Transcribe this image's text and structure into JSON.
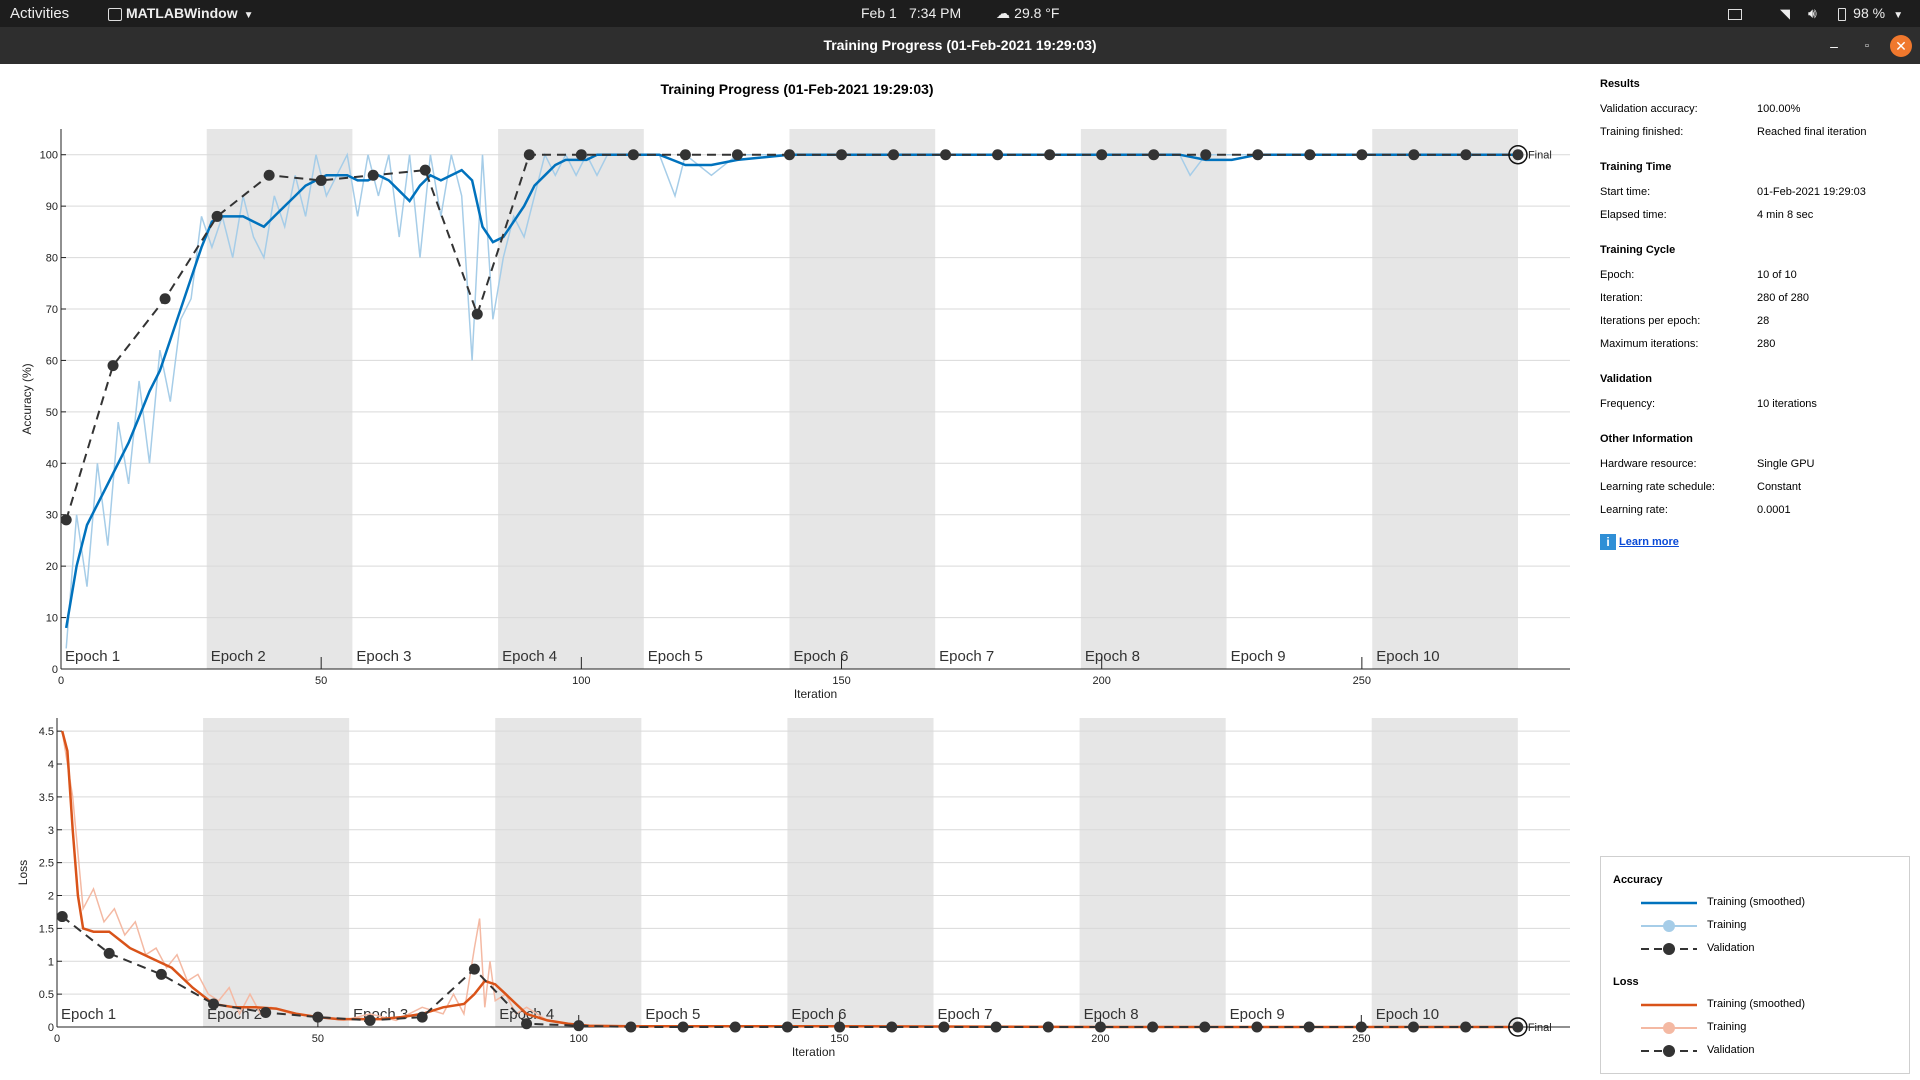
{
  "topbar": {
    "activities": "Activities",
    "app_menu": "MATLABWindow",
    "date": "Feb 1",
    "time": "7:34 PM",
    "weather": "29.8 °F",
    "battery": "98 %"
  },
  "window": {
    "title": "Training Progress (01-Feb-2021 19:29:03)"
  },
  "figure_title": "Training Progress (01-Feb-2021 19:29:03)",
  "colors": {
    "accuracy_smoothed": "#0072bd",
    "accuracy_raw": "#a6cde8",
    "loss_smoothed": "#d95319",
    "loss_raw": "#f4b9a3",
    "validation": "#333333",
    "epoch_shade": "#e6e6e6"
  },
  "chart_data": [
    {
      "type": "line",
      "title": "",
      "xlabel": "Iteration",
      "ylabel": "Accuracy (%)",
      "xlim": [
        0,
        290
      ],
      "ylim": [
        0,
        105
      ],
      "xticks": [
        0,
        50,
        100,
        150,
        200,
        250
      ],
      "yticks": [
        0,
        10,
        20,
        30,
        40,
        50,
        60,
        70,
        80,
        90,
        100
      ],
      "epochs": [
        "Epoch 1",
        "Epoch 2",
        "Epoch 3",
        "Epoch 4",
        "Epoch 5",
        "Epoch 6",
        "Epoch 7",
        "Epoch 8",
        "Epoch 9",
        "Epoch 10"
      ],
      "iterations_per_epoch": 28,
      "final_label": "Final",
      "series": [
        {
          "name": "Training (smoothed)",
          "x": [
            1,
            3,
            5,
            7,
            9,
            11,
            13,
            15,
            17,
            19,
            21,
            23,
            25,
            27,
            29,
            31,
            33,
            35,
            37,
            39,
            41,
            43,
            45,
            47,
            49,
            51,
            53,
            55,
            57,
            59,
            61,
            63,
            65,
            67,
            69,
            71,
            73,
            75,
            77,
            79,
            81,
            83,
            85,
            87,
            89,
            91,
            93,
            95,
            97,
            99,
            101,
            103,
            105,
            110,
            115,
            120,
            125,
            130,
            140,
            150,
            160,
            170,
            180,
            190,
            200,
            210,
            215,
            220,
            225,
            230,
            240,
            250,
            260,
            270,
            280
          ],
          "y": [
            8,
            20,
            28,
            32,
            36,
            40,
            44,
            49,
            54,
            58,
            64,
            70,
            76,
            82,
            87,
            88,
            88,
            88,
            87,
            86,
            88,
            90,
            92,
            94,
            95,
            96,
            96,
            96,
            95,
            95,
            96,
            95,
            93,
            91,
            94,
            96,
            95,
            96,
            97,
            95,
            86,
            83,
            84,
            87,
            90,
            94,
            96,
            98,
            99,
            99,
            99,
            100,
            100,
            100,
            100,
            98,
            98,
            99,
            100,
            100,
            100,
            100,
            100,
            100,
            100,
            100,
            100,
            99,
            99,
            100,
            100,
            100,
            100,
            100,
            100
          ]
        },
        {
          "name": "Training",
          "x": [
            1,
            3,
            5,
            7,
            9,
            11,
            13,
            15,
            17,
            19,
            21,
            23,
            25,
            27,
            29,
            31,
            33,
            35,
            37,
            39,
            41,
            43,
            45,
            47,
            49,
            51,
            53,
            55,
            57,
            59,
            61,
            63,
            65,
            67,
            69,
            71,
            73,
            75,
            77,
            79,
            81,
            83,
            85,
            87,
            89,
            91,
            93,
            95,
            97,
            99,
            101,
            103,
            105,
            110,
            115,
            118,
            120,
            125,
            130,
            140,
            150,
            160,
            170,
            180,
            190,
            200,
            210,
            215,
            217,
            220,
            225,
            230,
            240,
            250,
            260,
            270,
            280
          ],
          "y": [
            4,
            30,
            16,
            40,
            24,
            48,
            36,
            56,
            40,
            62,
            52,
            68,
            72,
            88,
            82,
            88,
            80,
            92,
            84,
            80,
            92,
            86,
            96,
            88,
            100,
            92,
            96,
            100,
            88,
            100,
            92,
            100,
            84,
            100,
            80,
            100,
            88,
            100,
            92,
            60,
            100,
            68,
            80,
            88,
            84,
            92,
            100,
            96,
            100,
            96,
            100,
            96,
            100,
            100,
            100,
            92,
            100,
            96,
            100,
            100,
            100,
            100,
            100,
            100,
            100,
            100,
            100,
            100,
            96,
            100,
            100,
            100,
            100,
            100,
            100,
            100,
            100
          ]
        },
        {
          "name": "Validation",
          "x": [
            1,
            10,
            20,
            30,
            40,
            50,
            60,
            70,
            80,
            90,
            100,
            110,
            120,
            130,
            140,
            150,
            160,
            170,
            180,
            190,
            200,
            210,
            220,
            230,
            240,
            250,
            260,
            270,
            280
          ],
          "y": [
            29,
            59,
            72,
            88,
            96,
            95,
            96,
            97,
            69,
            100,
            100,
            100,
            100,
            100,
            100,
            100,
            100,
            100,
            100,
            100,
            100,
            100,
            100,
            100,
            100,
            100,
            100,
            100,
            100
          ]
        }
      ]
    },
    {
      "type": "line",
      "title": "",
      "xlabel": "Iteration",
      "ylabel": "Loss",
      "xlim": [
        0,
        290
      ],
      "ylim": [
        0,
        4.7
      ],
      "xticks": [
        0,
        50,
        100,
        150,
        200,
        250
      ],
      "yticks": [
        0,
        0.5,
        1,
        1.5,
        2,
        2.5,
        3,
        3.5,
        4,
        4.5
      ],
      "epochs": [
        "Epoch 1",
        "Epoch 2",
        "Epoch 3",
        "Epoch 4",
        "Epoch 5",
        "Epoch 6",
        "Epoch 7",
        "Epoch 8",
        "Epoch 9",
        "Epoch 10"
      ],
      "iterations_per_epoch": 28,
      "final_label": "Final",
      "series": [
        {
          "name": "Training (smoothed)",
          "x": [
            1,
            2,
            3,
            4,
            5,
            7,
            10,
            14,
            18,
            22,
            26,
            30,
            34,
            38,
            42,
            46,
            50,
            54,
            58,
            62,
            66,
            70,
            74,
            78,
            80,
            82,
            84,
            86,
            88,
            90,
            94,
            98,
            102,
            110,
            120,
            130,
            150,
            200,
            250,
            280
          ],
          "y": [
            4.5,
            4.2,
            3.0,
            2.0,
            1.5,
            1.45,
            1.45,
            1.2,
            1.05,
            0.9,
            0.6,
            0.35,
            0.3,
            0.3,
            0.28,
            0.2,
            0.15,
            0.12,
            0.12,
            0.12,
            0.15,
            0.2,
            0.3,
            0.35,
            0.5,
            0.7,
            0.65,
            0.5,
            0.35,
            0.2,
            0.1,
            0.05,
            0.02,
            0.01,
            0.01,
            0.01,
            0.01,
            0.0,
            0.0,
            0.0
          ]
        },
        {
          "name": "Training",
          "x": [
            1,
            3,
            5,
            7,
            9,
            11,
            13,
            15,
            17,
            19,
            21,
            23,
            25,
            27,
            29,
            31,
            33,
            35,
            37,
            39,
            41,
            45,
            50,
            55,
            60,
            65,
            70,
            74,
            76,
            78,
            80,
            81,
            82,
            83,
            84,
            86,
            88,
            90,
            94,
            98,
            102,
            110,
            120,
            150,
            200,
            250,
            280
          ],
          "y": [
            4.5,
            3.5,
            1.8,
            2.1,
            1.6,
            1.8,
            1.4,
            1.6,
            1.1,
            1.2,
            0.9,
            1.1,
            0.7,
            0.8,
            0.5,
            0.4,
            0.6,
            0.2,
            0.5,
            0.2,
            0.3,
            0.2,
            0.15,
            0.1,
            0.2,
            0.1,
            0.3,
            0.2,
            0.5,
            0.2,
            1.2,
            1.65,
            0.3,
            1.0,
            0.4,
            0.5,
            0.2,
            0.3,
            0.1,
            0.05,
            0.02,
            0.02,
            0.01,
            0.01,
            0.0,
            0.0,
            0.0
          ]
        },
        {
          "name": "Validation",
          "x": [
            1,
            10,
            20,
            30,
            40,
            50,
            60,
            70,
            80,
            90,
            100,
            110,
            120,
            130,
            140,
            150,
            160,
            170,
            180,
            190,
            200,
            210,
            220,
            230,
            240,
            250,
            260,
            270,
            280
          ],
          "y": [
            1.68,
            1.12,
            0.8,
            0.35,
            0.22,
            0.15,
            0.1,
            0.15,
            0.88,
            0.05,
            0.02,
            0.0,
            0.0,
            0.0,
            0.0,
            0.0,
            0.0,
            0.0,
            0.0,
            0.0,
            0.0,
            0.0,
            0.0,
            0.0,
            0.0,
            0.0,
            0.0,
            0.0,
            0.0
          ]
        }
      ]
    }
  ],
  "info": {
    "results": {
      "heading": "Results",
      "rows": [
        {
          "k": "Validation accuracy:",
          "v": "100.00%"
        },
        {
          "k": "Training finished:",
          "v": "Reached final iteration"
        }
      ]
    },
    "time": {
      "heading": "Training Time",
      "rows": [
        {
          "k": "Start time:",
          "v": "01-Feb-2021 19:29:03"
        },
        {
          "k": "Elapsed time:",
          "v": "4 min 8 sec"
        }
      ]
    },
    "cycle": {
      "heading": "Training Cycle",
      "rows": [
        {
          "k": "Epoch:",
          "v": "10 of 10"
        },
        {
          "k": "Iteration:",
          "v": "280 of 280"
        },
        {
          "k": "Iterations per epoch:",
          "v": "28"
        },
        {
          "k": "Maximum iterations:",
          "v": "280"
        }
      ]
    },
    "validation": {
      "heading": "Validation",
      "rows": [
        {
          "k": "Frequency:",
          "v": "10 iterations"
        }
      ]
    },
    "other": {
      "heading": "Other Information",
      "rows": [
        {
          "k": "Hardware resource:",
          "v": "Single GPU"
        },
        {
          "k": "Learning rate schedule:",
          "v": "Constant"
        },
        {
          "k": "Learning rate:",
          "v": "0.0001"
        }
      ]
    },
    "learn_more": "Learn more"
  },
  "legend": {
    "accuracy_heading": "Accuracy",
    "loss_heading": "Loss",
    "training_smoothed": "Training (smoothed)",
    "training": "Training",
    "validation": "Validation"
  }
}
